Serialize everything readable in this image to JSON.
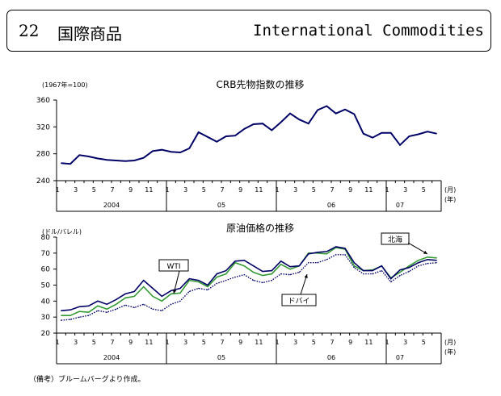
{
  "header": {
    "number": "22",
    "title_ja": "国際商品",
    "title_en": "International Commodities"
  },
  "note": "（備考）ブルームバーグより作成。",
  "x_labels": {
    "months": [
      "1",
      "3",
      "5",
      "7",
      "9",
      "11",
      "1",
      "3",
      "5",
      "7",
      "9",
      "11",
      "1",
      "3",
      "5",
      "7",
      "9",
      "11",
      "1",
      "3",
      "5"
    ],
    "years": [
      "2004",
      "05",
      "06",
      "07"
    ],
    "unit_month": "(月)",
    "unit_year": "(年)"
  },
  "chart_data": [
    {
      "type": "line",
      "title": "CRB先物指数の推移",
      "ylabel": "(1967年=100)",
      "ylim": [
        240,
        360
      ],
      "yticks": [
        240,
        280,
        320,
        360
      ],
      "x": [
        "2004-01",
        "2004-02",
        "2004-03",
        "2004-04",
        "2004-05",
        "2004-06",
        "2004-07",
        "2004-08",
        "2004-09",
        "2004-10",
        "2004-11",
        "2004-12",
        "2005-01",
        "2005-02",
        "2005-03",
        "2005-04",
        "2005-05",
        "2005-06",
        "2005-07",
        "2005-08",
        "2005-09",
        "2005-10",
        "2005-11",
        "2005-12",
        "2006-01",
        "2006-02",
        "2006-03",
        "2006-04",
        "2006-05",
        "2006-06",
        "2006-07",
        "2006-08",
        "2006-09",
        "2006-10",
        "2006-11",
        "2006-12",
        "2007-01",
        "2007-02",
        "2007-03",
        "2007-04",
        "2007-05",
        "2007-06"
      ],
      "series": [
        {
          "values": [
            266,
            265,
            278,
            276,
            273,
            271,
            270,
            269,
            270,
            274,
            284,
            286,
            283,
            282,
            288,
            312,
            305,
            298,
            306,
            307,
            317,
            324,
            325,
            315,
            327,
            340,
            331,
            325,
            345,
            351,
            340,
            346,
            339,
            310,
            304,
            311,
            311,
            293,
            306,
            309,
            313,
            310
          ],
          "color": "#000066"
        }
      ]
    },
    {
      "type": "line",
      "title": "原油価格の推移",
      "ylabel": "(ドル/バレル)",
      "ylim": [
        20,
        80
      ],
      "yticks": [
        20,
        30,
        40,
        50,
        60,
        70,
        80
      ],
      "x": [
        "2004-01",
        "2004-02",
        "2004-03",
        "2004-04",
        "2004-05",
        "2004-06",
        "2004-07",
        "2004-08",
        "2004-09",
        "2004-10",
        "2004-11",
        "2004-12",
        "2005-01",
        "2005-02",
        "2005-03",
        "2005-04",
        "2005-05",
        "2005-06",
        "2005-07",
        "2005-08",
        "2005-09",
        "2005-10",
        "2005-11",
        "2005-12",
        "2006-01",
        "2006-02",
        "2006-03",
        "2006-04",
        "2006-05",
        "2006-06",
        "2006-07",
        "2006-08",
        "2006-09",
        "2006-10",
        "2006-11",
        "2006-12",
        "2007-01",
        "2007-02",
        "2007-03",
        "2007-04",
        "2007-05",
        "2007-06"
      ],
      "series": [
        {
          "name": "WTI",
          "values": [
            34,
            34.5,
            36.5,
            37,
            40,
            38,
            41,
            44.5,
            46,
            53,
            48,
            43,
            46.5,
            48,
            54,
            53,
            50,
            57,
            59,
            65,
            65.5,
            62,
            58.5,
            59,
            65,
            61.5,
            62,
            69.5,
            70.5,
            71,
            74,
            73,
            64,
            59,
            59,
            62,
            54,
            59.5,
            61,
            64,
            66,
            65.5
          ],
          "color": "#000066",
          "style": "solid"
        },
        {
          "name": "北海",
          "values": [
            31,
            31,
            33.5,
            33,
            37,
            35,
            38,
            42,
            43,
            49,
            43,
            40,
            44.5,
            45,
            53,
            52,
            49,
            55,
            57,
            64,
            62,
            58,
            56,
            57,
            63,
            60,
            62,
            70,
            70,
            69.5,
            73.5,
            72.5,
            62,
            59,
            59.5,
            62,
            54.5,
            58,
            62,
            65.5,
            67.5,
            67
          ],
          "color": "#339933",
          "style": "solid"
        },
        {
          "name": "ドバイ",
          "values": [
            28,
            28.5,
            30,
            31,
            34,
            33,
            35,
            37.5,
            36,
            38,
            35,
            34,
            38,
            40,
            46,
            48,
            47,
            51,
            53,
            55,
            56.5,
            53,
            51.5,
            53,
            57,
            56.5,
            58,
            64,
            64,
            66,
            69,
            69,
            61,
            57,
            57,
            59,
            52,
            56,
            58.5,
            62,
            63.5,
            64
          ],
          "color": "#000066",
          "style": "dotted"
        }
      ],
      "annotations": [
        "WTI",
        "北海",
        "ドバイ"
      ]
    }
  ]
}
